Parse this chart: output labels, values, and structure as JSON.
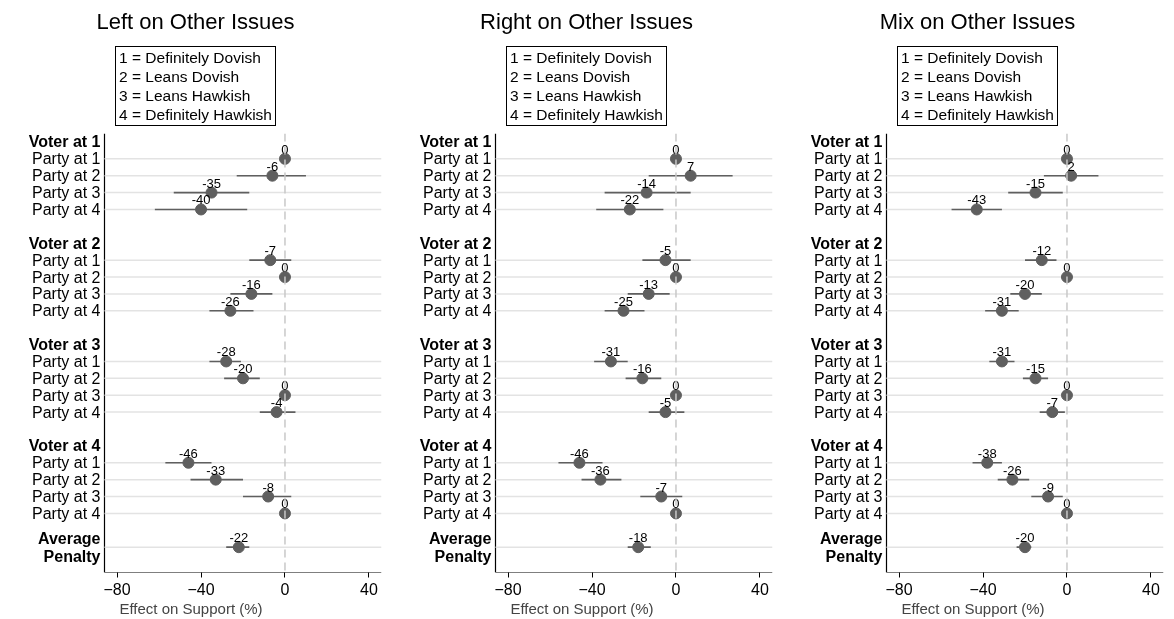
{
  "chart_data": [
    {
      "type": "scatter",
      "orientation": "horizontal",
      "title": "Left on Other Issues",
      "xlabel": "Effect on Support (%)",
      "annotations": [
        "1 = Definitely Dovish",
        "2 = Leans Dovish",
        "3 = Leans Hawkish",
        "4 = Definitely Hawkish"
      ],
      "categories": [
        "Voter at 1",
        "Party at 1",
        "Party at 2",
        "Party at 3",
        "Party at 4",
        null,
        "Voter at 2",
        "Party at 1",
        "Party at 2",
        "Party at 3",
        "Party at 4",
        null,
        "Voter at 3",
        "Party at 1",
        "Party at 2",
        "Party at 3",
        "Party at 4",
        null,
        "Voter at 4",
        "Party at 1",
        "Party at 2",
        "Party at 3",
        "Party at 4",
        null,
        "Average\nPenalty"
      ],
      "values": [
        null,
        0,
        -6,
        -35,
        -40,
        null,
        null,
        -7,
        0,
        -16,
        -26,
        null,
        null,
        -28,
        -20,
        0,
        -4,
        null,
        null,
        -46,
        -33,
        -8,
        0,
        null,
        -22
      ],
      "errors": [
        null,
        null,
        [
          -23,
          10
        ],
        [
          -53,
          -17
        ],
        [
          -62,
          -18
        ],
        null,
        null,
        [
          -17,
          3
        ],
        null,
        [
          -26,
          -6
        ],
        [
          -36,
          -15
        ],
        null,
        null,
        [
          -36,
          -21
        ],
        [
          -29,
          -12
        ],
        null,
        [
          -12,
          5
        ],
        null,
        null,
        [
          -57,
          -35
        ],
        [
          -45,
          -20
        ],
        [
          -20,
          3
        ],
        null,
        null,
        [
          -28,
          -17
        ]
      ],
      "color": "#5f5f5f",
      "marker": "circle",
      "data_labels": true,
      "grid": "y",
      "xlim": [
        -86,
        46
      ],
      "xticks": [
        -80,
        -40,
        0,
        40
      ],
      "ref_lines": [
        {
          "axis": "x",
          "value": 0,
          "label": null,
          "color": "#c8c8c8",
          "line_style": "dashed"
        }
      ]
    },
    {
      "type": "scatter",
      "orientation": "horizontal",
      "title": "Right on Other Issues",
      "xlabel": "Effect on Support (%)",
      "annotations": [
        "1 = Definitely Dovish",
        "2 = Leans Dovish",
        "3 = Leans Hawkish",
        "4 = Definitely Hawkish"
      ],
      "categories": [
        "Voter at 1",
        "Party at 1",
        "Party at 2",
        "Party at 3",
        "Party at 4",
        null,
        "Voter at 2",
        "Party at 1",
        "Party at 2",
        "Party at 3",
        "Party at 4",
        null,
        "Voter at 3",
        "Party at 1",
        "Party at 2",
        "Party at 3",
        "Party at 4",
        null,
        "Voter at 4",
        "Party at 1",
        "Party at 2",
        "Party at 3",
        "Party at 4",
        null,
        "Average\nPenalty"
      ],
      "values": [
        null,
        0,
        7,
        -14,
        -22,
        null,
        null,
        -5,
        0,
        -13,
        -25,
        null,
        null,
        -31,
        -16,
        0,
        -5,
        null,
        null,
        -46,
        -36,
        -7,
        0,
        null,
        -18
      ],
      "errors": [
        null,
        null,
        [
          -13,
          27
        ],
        [
          -34,
          7
        ],
        [
          -38,
          -6
        ],
        null,
        null,
        [
          -16,
          7
        ],
        null,
        [
          -23,
          -3
        ],
        [
          -34,
          -15
        ],
        null,
        null,
        [
          -39,
          -23
        ],
        [
          -24,
          -7
        ],
        null,
        [
          -13,
          4
        ],
        null,
        null,
        [
          -56,
          -35
        ],
        [
          -45,
          -26
        ],
        [
          -17,
          3
        ],
        null,
        null,
        [
          -23,
          -12
        ]
      ],
      "color": "#5f5f5f",
      "marker": "circle",
      "data_labels": true,
      "grid": "y",
      "xlim": [
        -86,
        46
      ],
      "xticks": [
        -80,
        -40,
        0,
        40
      ],
      "ref_lines": [
        {
          "axis": "x",
          "value": 0,
          "label": null,
          "color": "#c8c8c8",
          "line_style": "dashed"
        }
      ]
    },
    {
      "type": "scatter",
      "orientation": "horizontal",
      "title": "Mix on Other Issues",
      "xlabel": "Effect on Support (%)",
      "annotations": [
        "1 = Definitely Dovish",
        "2 = Leans Dovish",
        "3 = Leans Hawkish",
        "4 = Definitely Hawkish"
      ],
      "categories": [
        "Voter at 1",
        "Party at 1",
        "Party at 2",
        "Party at 3",
        "Party at 4",
        null,
        "Voter at 2",
        "Party at 1",
        "Party at 2",
        "Party at 3",
        "Party at 4",
        null,
        "Voter at 3",
        "Party at 1",
        "Party at 2",
        "Party at 3",
        "Party at 4",
        null,
        "Voter at 4",
        "Party at 1",
        "Party at 2",
        "Party at 3",
        "Party at 4",
        null,
        "Average\nPenalty"
      ],
      "values": [
        null,
        0,
        2,
        -15,
        -43,
        null,
        null,
        -12,
        0,
        -20,
        -31,
        null,
        null,
        -31,
        -15,
        0,
        -7,
        null,
        null,
        -38,
        -26,
        -9,
        0,
        null,
        -20
      ],
      "errors": [
        null,
        null,
        [
          -11,
          15
        ],
        [
          -28,
          -2
        ],
        [
          -55,
          -31
        ],
        null,
        null,
        [
          -20,
          -5
        ],
        null,
        [
          -27,
          -12
        ],
        [
          -39,
          -23
        ],
        null,
        null,
        [
          -37,
          -25
        ],
        [
          -21,
          -9
        ],
        null,
        [
          -13,
          -1
        ],
        null,
        null,
        [
          -45,
          -31
        ],
        [
          -33,
          -18
        ],
        [
          -17,
          -2
        ],
        null,
        null,
        [
          -24,
          -17
        ]
      ],
      "color": "#5f5f5f",
      "marker": "circle",
      "data_labels": true,
      "grid": "y",
      "xlim": [
        -86,
        46
      ],
      "xticks": [
        -80,
        -40,
        0,
        40
      ],
      "ref_lines": [
        {
          "axis": "x",
          "value": 0,
          "label": null,
          "color": "#c8c8c8",
          "line_style": "dashed"
        }
      ]
    }
  ]
}
